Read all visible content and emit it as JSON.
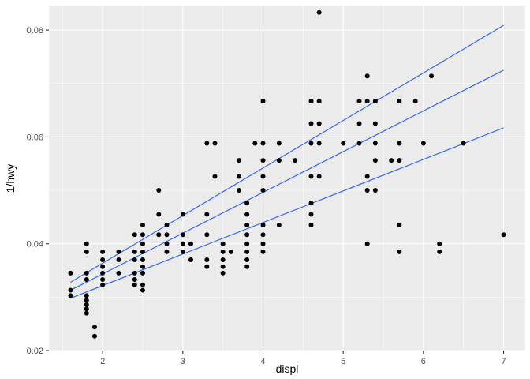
{
  "chart_data": {
    "type": "scatter",
    "xlabel": "displ",
    "ylabel": "1/hwy",
    "xlim": [
      1.33,
      7.27
    ],
    "ylim": [
      0.02,
      0.0846
    ],
    "x_ticks": [
      2,
      3,
      4,
      5,
      6,
      7
    ],
    "y_ticks": [
      0.02,
      0.04,
      0.06,
      0.08
    ],
    "x_tick_labels": [
      "2",
      "3",
      "4",
      "5",
      "6",
      "7"
    ],
    "y_tick_labels": [
      "0.02",
      "0.04",
      "0.06",
      "0.08"
    ],
    "grid": true,
    "legend": "none",
    "colors": {
      "panel": "#ebebeb",
      "grid": "#ffffff",
      "points": "#000000",
      "lines": "#3366ff"
    },
    "points": [
      [
        1.6,
        0.0345
      ],
      [
        1.6,
        0.0313
      ],
      [
        1.6,
        0.0303
      ],
      [
        1.8,
        0.04
      ],
      [
        1.8,
        0.0385
      ],
      [
        1.8,
        0.0345
      ],
      [
        1.8,
        0.0333
      ],
      [
        1.8,
        0.0303
      ],
      [
        1.8,
        0.0294
      ],
      [
        1.8,
        0.0286
      ],
      [
        1.8,
        0.0278
      ],
      [
        1.8,
        0.027
      ],
      [
        1.9,
        0.0244
      ],
      [
        1.9,
        0.0227
      ],
      [
        2.0,
        0.0385
      ],
      [
        2.0,
        0.037
      ],
      [
        2.0,
        0.0357
      ],
      [
        2.0,
        0.0345
      ],
      [
        2.0,
        0.0333
      ],
      [
        2.0,
        0.0323
      ],
      [
        2.2,
        0.0385
      ],
      [
        2.2,
        0.037
      ],
      [
        2.2,
        0.0345
      ],
      [
        2.4,
        0.0417
      ],
      [
        2.4,
        0.0385
      ],
      [
        2.4,
        0.037
      ],
      [
        2.4,
        0.0345
      ],
      [
        2.4,
        0.0333
      ],
      [
        2.4,
        0.0323
      ],
      [
        2.5,
        0.0435
      ],
      [
        2.5,
        0.0417
      ],
      [
        2.5,
        0.04
      ],
      [
        2.5,
        0.0385
      ],
      [
        2.5,
        0.037
      ],
      [
        2.5,
        0.0357
      ],
      [
        2.5,
        0.0345
      ],
      [
        2.5,
        0.0323
      ],
      [
        2.5,
        0.0313
      ],
      [
        2.7,
        0.05
      ],
      [
        2.7,
        0.0455
      ],
      [
        2.7,
        0.0417
      ],
      [
        2.8,
        0.0435
      ],
      [
        2.8,
        0.0417
      ],
      [
        2.8,
        0.04
      ],
      [
        2.8,
        0.0385
      ],
      [
        3.0,
        0.0455
      ],
      [
        3.0,
        0.0417
      ],
      [
        3.0,
        0.04
      ],
      [
        3.0,
        0.0385
      ],
      [
        3.1,
        0.04
      ],
      [
        3.1,
        0.037
      ],
      [
        3.3,
        0.0588
      ],
      [
        3.3,
        0.0455
      ],
      [
        3.3,
        0.0417
      ],
      [
        3.3,
        0.037
      ],
      [
        3.3,
        0.0357
      ],
      [
        3.4,
        0.0588
      ],
      [
        3.4,
        0.0526
      ],
      [
        3.5,
        0.04
      ],
      [
        3.5,
        0.0385
      ],
      [
        3.5,
        0.037
      ],
      [
        3.5,
        0.0357
      ],
      [
        3.5,
        0.0345
      ],
      [
        3.6,
        0.0385
      ],
      [
        3.7,
        0.0556
      ],
      [
        3.7,
        0.0526
      ],
      [
        3.7,
        0.05
      ],
      [
        3.8,
        0.0476
      ],
      [
        3.8,
        0.0455
      ],
      [
        3.8,
        0.0435
      ],
      [
        3.8,
        0.0417
      ],
      [
        3.8,
        0.04
      ],
      [
        3.8,
        0.0385
      ],
      [
        3.8,
        0.037
      ],
      [
        3.8,
        0.0357
      ],
      [
        3.9,
        0.0588
      ],
      [
        4.0,
        0.0667
      ],
      [
        4.0,
        0.0588
      ],
      [
        4.0,
        0.0556
      ],
      [
        4.0,
        0.0526
      ],
      [
        4.0,
        0.05
      ],
      [
        4.0,
        0.0435
      ],
      [
        4.0,
        0.0417
      ],
      [
        4.0,
        0.04
      ],
      [
        4.0,
        0.0385
      ],
      [
        4.2,
        0.0588
      ],
      [
        4.2,
        0.0556
      ],
      [
        4.2,
        0.0435
      ],
      [
        4.4,
        0.0556
      ],
      [
        4.6,
        0.0667
      ],
      [
        4.6,
        0.0625
      ],
      [
        4.6,
        0.0588
      ],
      [
        4.6,
        0.0526
      ],
      [
        4.6,
        0.0476
      ],
      [
        4.6,
        0.0455
      ],
      [
        4.6,
        0.0435
      ],
      [
        4.7,
        0.0833
      ],
      [
        4.7,
        0.0667
      ],
      [
        4.7,
        0.0625
      ],
      [
        4.7,
        0.0588
      ],
      [
        4.7,
        0.0526
      ],
      [
        5.0,
        0.0588
      ],
      [
        5.2,
        0.0667
      ],
      [
        5.2,
        0.0625
      ],
      [
        5.2,
        0.0588
      ],
      [
        5.3,
        0.0714
      ],
      [
        5.3,
        0.0667
      ],
      [
        5.3,
        0.0526
      ],
      [
        5.3,
        0.05
      ],
      [
        5.3,
        0.04
      ],
      [
        5.4,
        0.0667
      ],
      [
        5.4,
        0.0625
      ],
      [
        5.4,
        0.0588
      ],
      [
        5.4,
        0.0556
      ],
      [
        5.4,
        0.05
      ],
      [
        5.6,
        0.0556
      ],
      [
        5.7,
        0.0667
      ],
      [
        5.7,
        0.0588
      ],
      [
        5.7,
        0.0556
      ],
      [
        5.7,
        0.0435
      ],
      [
        5.7,
        0.0385
      ],
      [
        5.9,
        0.0667
      ],
      [
        6.0,
        0.0588
      ],
      [
        6.1,
        0.0714
      ],
      [
        6.2,
        0.04
      ],
      [
        6.2,
        0.0385
      ],
      [
        6.5,
        0.0588
      ],
      [
        7.0,
        0.0417
      ]
    ],
    "lines": [
      {
        "x": [
          1.6,
          7.0
        ],
        "y": [
          0.0328,
          0.0809
        ]
      },
      {
        "x": [
          1.6,
          7.0
        ],
        "y": [
          0.0313,
          0.0725
        ]
      },
      {
        "x": [
          1.6,
          7.0
        ],
        "y": [
          0.0298,
          0.0617
        ]
      }
    ]
  }
}
